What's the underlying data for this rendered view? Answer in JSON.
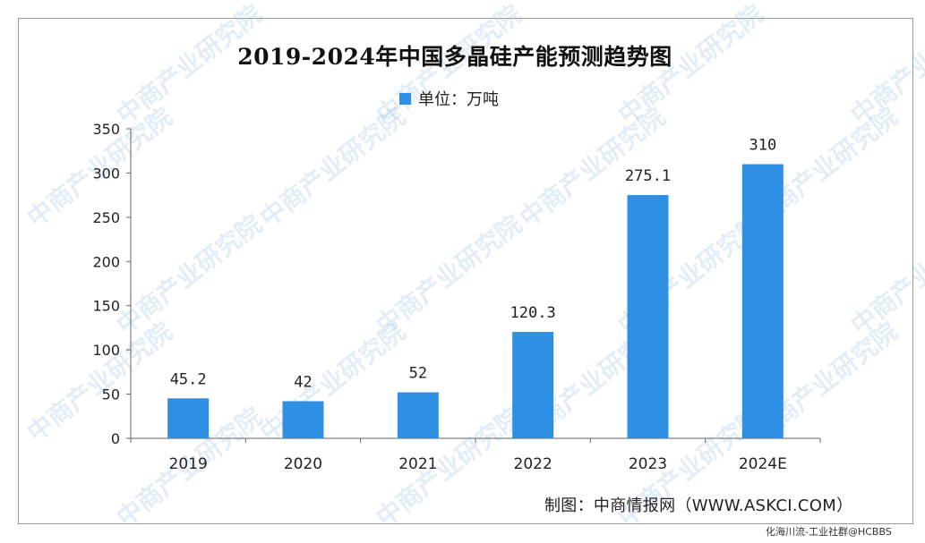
{
  "chart_data": {
    "type": "bar",
    "title": "2019-2024年中国多晶硅产能预测趋势图",
    "legend": "单位：万吨",
    "categories": [
      "2019",
      "2020",
      "2021",
      "2022",
      "2023",
      "2024E"
    ],
    "series": [
      {
        "name": "单位：万吨",
        "values": [
          45.2,
          42,
          52,
          120.3,
          275.1,
          310
        ],
        "labels": [
          "45.2",
          "42",
          "52",
          "120.3",
          "275.1",
          "310"
        ]
      }
    ],
    "ylim": [
      0,
      350
    ],
    "yticks": [
      0,
      50,
      100,
      150,
      200,
      250,
      300,
      350
    ],
    "xlabel": "",
    "ylabel": "",
    "grid": false,
    "legend_position": "top-center",
    "bar_color": "#2f8fe5"
  },
  "source_credit": "制图：中商情报网（WWW.ASKCI.COM）",
  "watermark_text": "中商产业研究院",
  "corner_watermark": "化海川流-工业社群@HCBBS"
}
